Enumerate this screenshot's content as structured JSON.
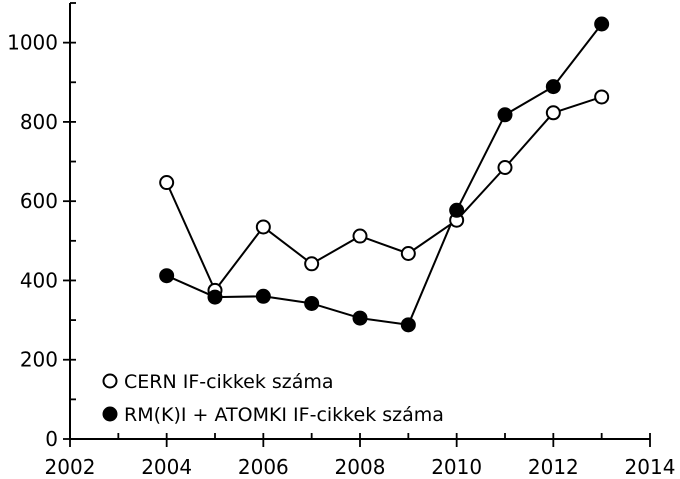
{
  "chart_data": {
    "type": "line",
    "title": "",
    "xlabel": "",
    "ylabel": "",
    "xlim": [
      2002,
      2014
    ],
    "ylim": [
      0,
      1100
    ],
    "x_ticks": [
      2002,
      2004,
      2006,
      2008,
      2010,
      2012,
      2014
    ],
    "x_minor_ticks": [
      2003,
      2005,
      2007,
      2009,
      2011,
      2013
    ],
    "y_ticks": [
      0,
      200,
      400,
      600,
      800,
      1000
    ],
    "y_minor_ticks": [
      100,
      300,
      500,
      700,
      900,
      1100
    ],
    "grid": false,
    "legend_position": "bottom-left",
    "series": [
      {
        "name": "CERN IF-cikkek száma",
        "marker": "open-circle",
        "color": "#000000",
        "x": [
          2004,
          2005,
          2006,
          2007,
          2008,
          2009,
          2010,
          2011,
          2012,
          2013
        ],
        "values": [
          647,
          375,
          535,
          442,
          512,
          468,
          552,
          685,
          823,
          863
        ]
      },
      {
        "name": "RM(K)I + ATOMKI IF-cikkek száma",
        "marker": "filled-circle",
        "color": "#000000",
        "x": [
          2004,
          2005,
          2006,
          2007,
          2008,
          2009,
          2010,
          2011,
          2012,
          2013
        ],
        "values": [
          412,
          358,
          360,
          342,
          305,
          288,
          577,
          818,
          889,
          1047
        ]
      }
    ]
  }
}
